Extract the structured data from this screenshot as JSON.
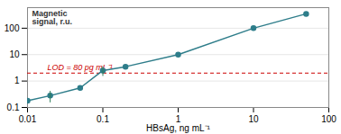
{
  "chart_data": {
    "type": "line",
    "xlabel": "HBsAg, ng mL⁻¹",
    "ylabel": "Magnetic\nsignal, r.u.",
    "log": true,
    "grid": "y",
    "x": [
      0.01,
      0.02,
      0.05,
      0.1,
      0.2,
      1.0,
      10.0,
      50.0
    ],
    "values": [
      0.18,
      0.28,
      0.55,
      2.5,
      3.5,
      10.0,
      100.0,
      350.0
    ],
    "color": "#2e7d8a",
    "marker": "o",
    "error_bars": {
      "x": [
        0.02,
        0.1
      ],
      "y": [
        0.28,
        2.5
      ],
      "yerr": [
        0.13,
        1.0
      ],
      "color": "#2e7d5a"
    },
    "reference_lines": [
      {
        "y": 2.0,
        "color": "#cc0000",
        "line_style": "dashed",
        "label": "LOD = 80 pg mL⁻¹"
      }
    ],
    "xlim": [
      0.01,
      100
    ],
    "ylim": [
      0.1,
      600
    ],
    "xticks": [
      0.01,
      0.1,
      1,
      10,
      100
    ],
    "yticks": [
      0.1,
      1,
      10,
      100
    ]
  }
}
